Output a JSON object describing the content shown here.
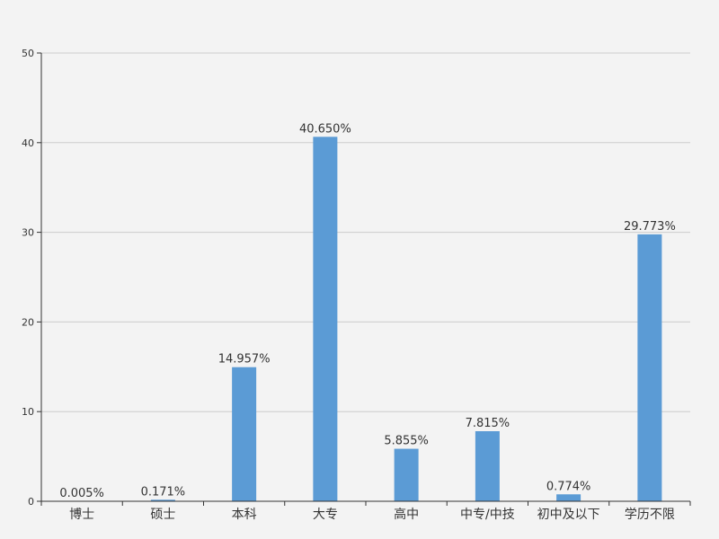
{
  "chart_data": {
    "type": "bar",
    "categories": [
      "博士",
      "硕士",
      "本科",
      "大专",
      "高中",
      "中专/中技",
      "初中及以下",
      "学历不限"
    ],
    "values": [
      0.005,
      0.171,
      14.957,
      40.65,
      5.855,
      7.815,
      0.774,
      29.773
    ],
    "value_labels": [
      "0.005%",
      "0.171%",
      "14.957%",
      "40.650%",
      "5.855%",
      "7.815%",
      "0.774%",
      "29.773%"
    ],
    "ylim": [
      0,
      50
    ],
    "yticks": [
      0,
      10,
      20,
      30,
      40,
      50
    ],
    "ytick_labels": [
      "0",
      "10",
      "20",
      "30",
      "40",
      "50"
    ],
    "grid": true,
    "bar_color": "#5b9bd5",
    "grid_color": "#cccccc",
    "axis_color": "#333333"
  }
}
